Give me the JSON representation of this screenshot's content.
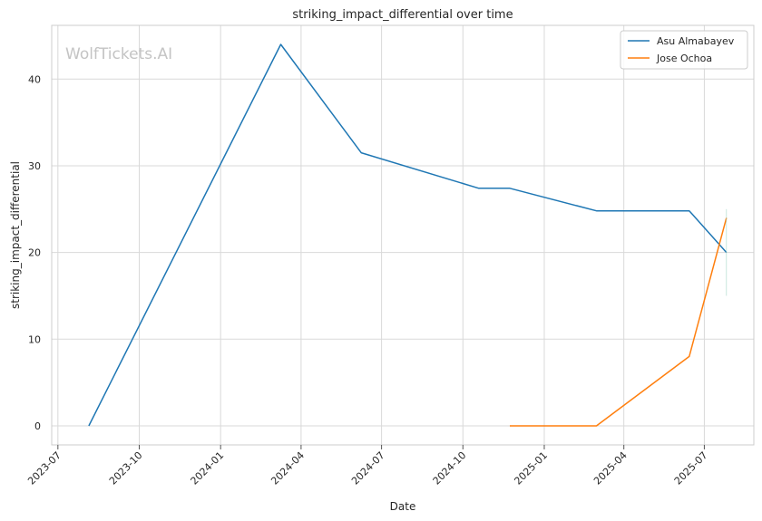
{
  "chart_data": {
    "type": "line",
    "title": "striking_impact_differential over time",
    "xlabel": "Date",
    "ylabel": "striking_impact_differential",
    "watermark": "WolfTickets.AI",
    "x_ticks": [
      "2023-07",
      "2023-10",
      "2024-01",
      "2024-04",
      "2024-07",
      "2024-10",
      "2025-01",
      "2025-04",
      "2025-07"
    ],
    "y_ticks": [
      0,
      10,
      20,
      30,
      40
    ],
    "ylim": [
      -2.2,
      46.2
    ],
    "xlim": [
      "2023-06-24",
      "2025-08-26"
    ],
    "grid": true,
    "legend_position": "top-right",
    "series": [
      {
        "name": "Asu Almabayev",
        "color": "#1f77b4",
        "points": [
          {
            "x": "2023-08-05",
            "y": 0
          },
          {
            "x": "2024-03-09",
            "y": 44
          },
          {
            "x": "2024-06-08",
            "y": 31.5
          },
          {
            "x": "2024-10-19",
            "y": 27.4
          },
          {
            "x": "2024-11-23",
            "y": 27.4
          },
          {
            "x": "2025-03-01",
            "y": 24.8
          },
          {
            "x": "2025-06-14",
            "y": 24.8
          },
          {
            "x": "2025-07-26",
            "y": 20
          }
        ]
      },
      {
        "name": "Jose Ochoa",
        "color": "#ff7f0e",
        "points": [
          {
            "x": "2024-11-23",
            "y": 0
          },
          {
            "x": "2025-03-01",
            "y": 0
          },
          {
            "x": "2025-06-14",
            "y": 8
          },
          {
            "x": "2025-07-26",
            "y": 24
          }
        ]
      }
    ]
  }
}
